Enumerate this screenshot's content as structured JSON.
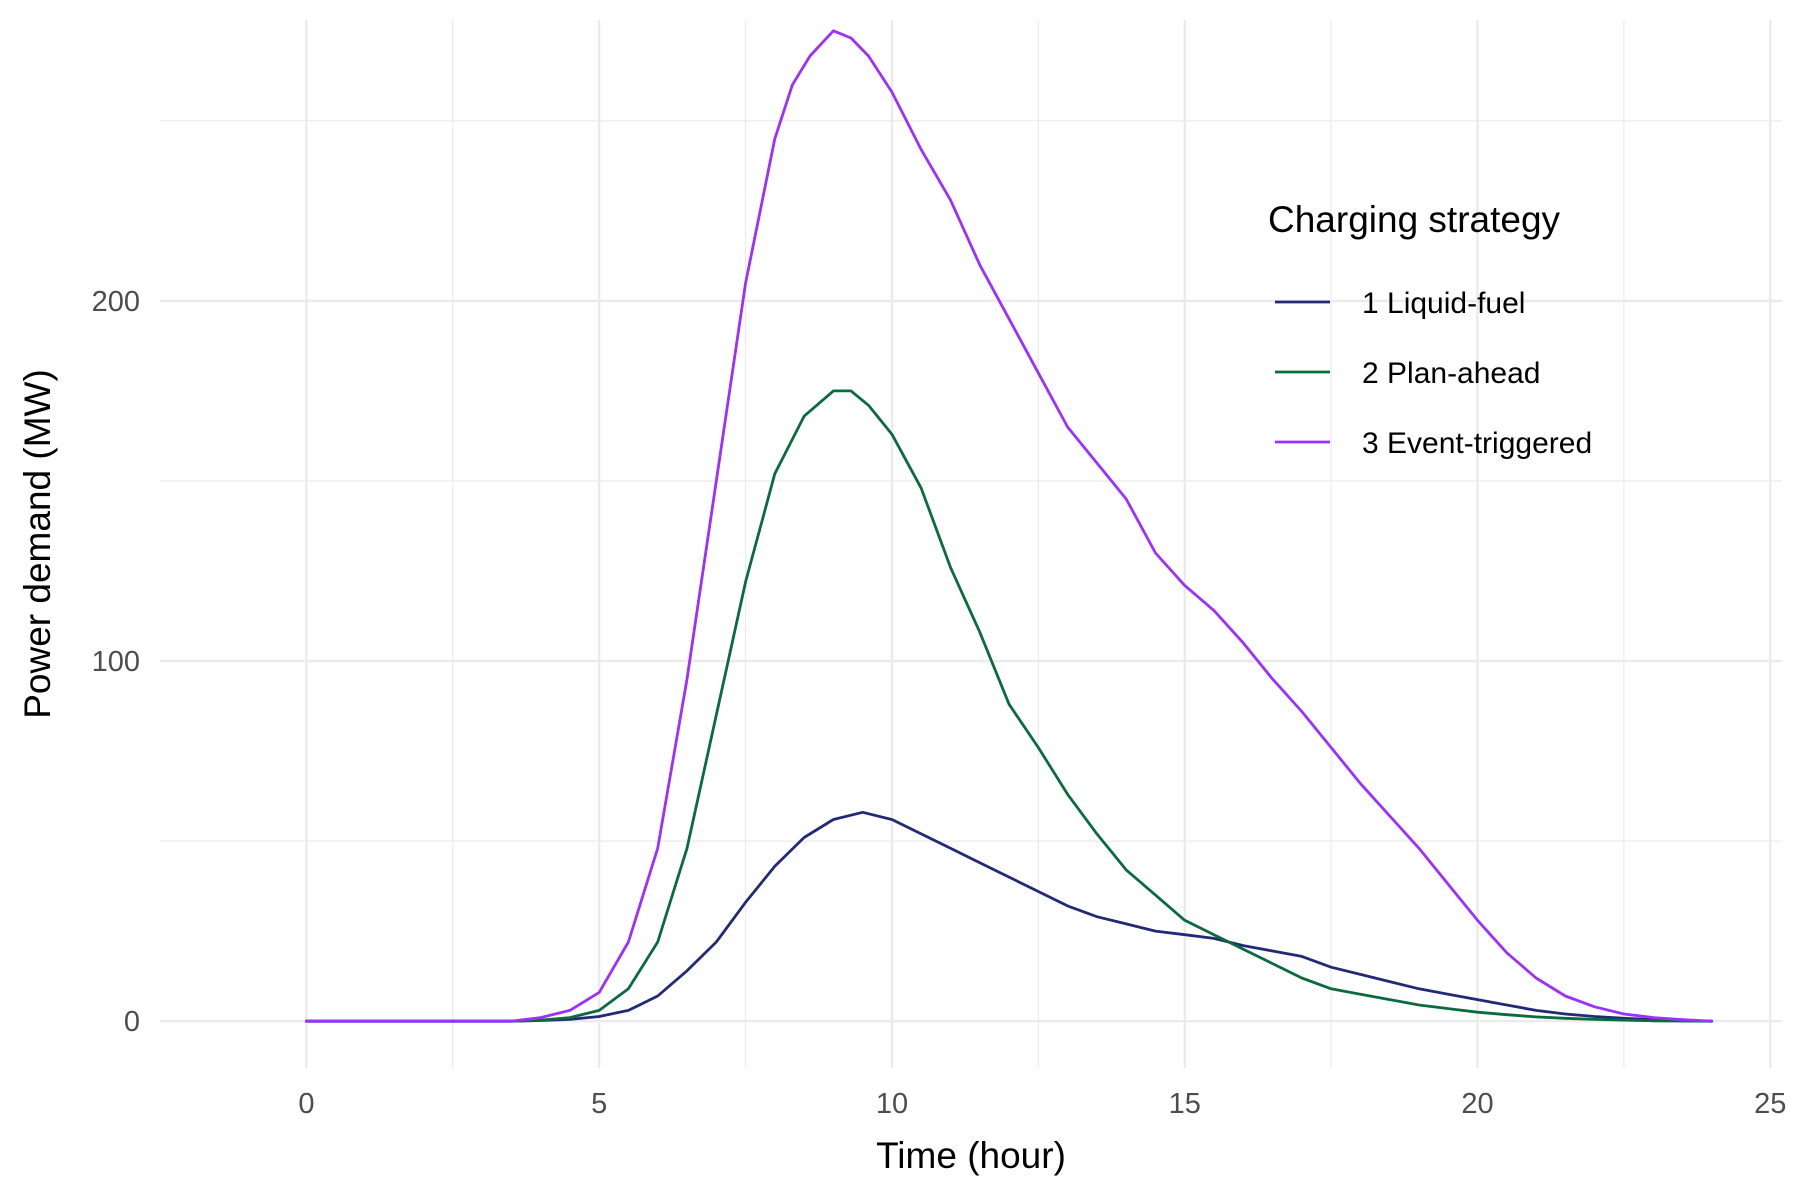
{
  "chart_data": {
    "type": "line",
    "xlabel": "Time (hour)",
    "ylabel": "Power demand (MW)",
    "xlim": [
      -2.5,
      25.2
    ],
    "ylim": [
      -13,
      278
    ],
    "x_ticks": [
      0,
      5,
      10,
      15,
      20,
      25
    ],
    "x_tick_labels": [
      "0",
      "5",
      "10",
      "15",
      "20",
      "25"
    ],
    "y_ticks": [
      0,
      100,
      200
    ],
    "y_tick_labels": [
      "0",
      "100",
      "200"
    ],
    "grid": true,
    "legend": {
      "title": "Charging strategy",
      "placement": "top-right inside"
    },
    "series": [
      {
        "name": "1 Liquid-fuel",
        "color": "#232a75",
        "points": [
          [
            0,
            0
          ],
          [
            3.5,
            0
          ],
          [
            4,
            0.2
          ],
          [
            4.5,
            0.5
          ],
          [
            5,
            1.3
          ],
          [
            5.5,
            3
          ],
          [
            6,
            7
          ],
          [
            6.5,
            14
          ],
          [
            7,
            22
          ],
          [
            7.5,
            33
          ],
          [
            8,
            43
          ],
          [
            8.5,
            51
          ],
          [
            9,
            56
          ],
          [
            9.5,
            58
          ],
          [
            10,
            56
          ],
          [
            10.5,
            52
          ],
          [
            11,
            48
          ],
          [
            11.5,
            44
          ],
          [
            12,
            40
          ],
          [
            12.5,
            36
          ],
          [
            13,
            32
          ],
          [
            13.5,
            29
          ],
          [
            14,
            27
          ],
          [
            14.5,
            25
          ],
          [
            15,
            24
          ],
          [
            15.5,
            23
          ],
          [
            16,
            21
          ],
          [
            16.5,
            19.5
          ],
          [
            17,
            18
          ],
          [
            17.5,
            15
          ],
          [
            18,
            13
          ],
          [
            18.5,
            11
          ],
          [
            19,
            9
          ],
          [
            19.5,
            7.5
          ],
          [
            20,
            6
          ],
          [
            20.5,
            4.5
          ],
          [
            21,
            3
          ],
          [
            21.5,
            2
          ],
          [
            22,
            1.3
          ],
          [
            22.5,
            0.8
          ],
          [
            23,
            0.4
          ],
          [
            23.5,
            0.2
          ],
          [
            24,
            0
          ]
        ]
      },
      {
        "name": "2 Plan-ahead",
        "color": "#0a6b3e",
        "points": [
          [
            0,
            0
          ],
          [
            3.5,
            0
          ],
          [
            4,
            0.3
          ],
          [
            4.5,
            1
          ],
          [
            5,
            3
          ],
          [
            5.5,
            9
          ],
          [
            6,
            22
          ],
          [
            6.5,
            48
          ],
          [
            7,
            85
          ],
          [
            7.5,
            122
          ],
          [
            8,
            152
          ],
          [
            8.5,
            168
          ],
          [
            9,
            175
          ],
          [
            9.3,
            175
          ],
          [
            9.6,
            171
          ],
          [
            10,
            163
          ],
          [
            10.5,
            148
          ],
          [
            11,
            126
          ],
          [
            11.5,
            108
          ],
          [
            12,
            88
          ],
          [
            12.5,
            76
          ],
          [
            13,
            63
          ],
          [
            13.5,
            52
          ],
          [
            14,
            42
          ],
          [
            14.5,
            35
          ],
          [
            15,
            28
          ],
          [
            15.5,
            24
          ],
          [
            16,
            20
          ],
          [
            16.5,
            16
          ],
          [
            17,
            12
          ],
          [
            17.5,
            9
          ],
          [
            18,
            7.5
          ],
          [
            18.5,
            6
          ],
          [
            19,
            4.5
          ],
          [
            19.5,
            3.5
          ],
          [
            20,
            2.5
          ],
          [
            20.5,
            1.8
          ],
          [
            21,
            1.2
          ],
          [
            21.5,
            0.8
          ],
          [
            22,
            0.5
          ],
          [
            22.5,
            0.3
          ],
          [
            23,
            0.1
          ],
          [
            24,
            0
          ]
        ]
      },
      {
        "name": "3 Event-triggered",
        "color": "#9b30ff",
        "points": [
          [
            0,
            0
          ],
          [
            3.5,
            0
          ],
          [
            4,
            1
          ],
          [
            4.5,
            3
          ],
          [
            5,
            8
          ],
          [
            5.5,
            22
          ],
          [
            6,
            48
          ],
          [
            6.5,
            95
          ],
          [
            7,
            150
          ],
          [
            7.5,
            205
          ],
          [
            8,
            245
          ],
          [
            8.3,
            260
          ],
          [
            8.6,
            268
          ],
          [
            9,
            275
          ],
          [
            9.3,
            273
          ],
          [
            9.6,
            268
          ],
          [
            10,
            258
          ],
          [
            10.5,
            242
          ],
          [
            11,
            228
          ],
          [
            11.5,
            210
          ],
          [
            12,
            195
          ],
          [
            12.5,
            180
          ],
          [
            13,
            165
          ],
          [
            13.5,
            155
          ],
          [
            14,
            145
          ],
          [
            14.5,
            130
          ],
          [
            15,
            121
          ],
          [
            15.5,
            114
          ],
          [
            16,
            105
          ],
          [
            16.5,
            95
          ],
          [
            17,
            86
          ],
          [
            17.5,
            76
          ],
          [
            18,
            66
          ],
          [
            18.5,
            57
          ],
          [
            19,
            48
          ],
          [
            19.5,
            38
          ],
          [
            20,
            28
          ],
          [
            20.5,
            19
          ],
          [
            21,
            12
          ],
          [
            21.5,
            7
          ],
          [
            22,
            4
          ],
          [
            22.5,
            2
          ],
          [
            23,
            1
          ],
          [
            23.5,
            0.4
          ],
          [
            24,
            0
          ]
        ]
      }
    ]
  }
}
